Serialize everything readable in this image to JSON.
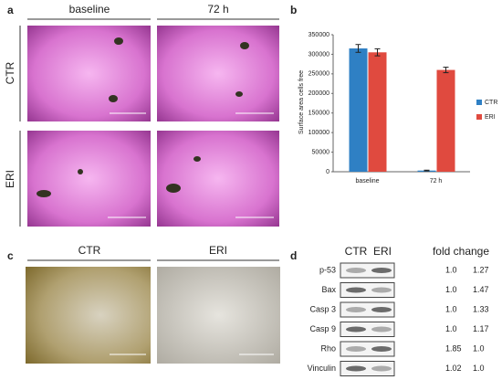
{
  "panel_labels": [
    "a",
    "b",
    "c",
    "d"
  ],
  "panel_a": {
    "columns": [
      "baseline",
      "72 h"
    ],
    "rows": [
      "CTR",
      "ERI"
    ]
  },
  "chart_data": {
    "type": "bar",
    "y_label": "Surface area cells free",
    "categories": [
      "baseline",
      "72 h"
    ],
    "series": [
      {
        "name": "CTR",
        "color": "#2f80c4",
        "values": [
          315000,
          3000
        ],
        "errors": [
          10000,
          1000
        ]
      },
      {
        "name": "ERI",
        "color": "#e04a3f",
        "values": [
          305000,
          260000
        ],
        "errors": [
          9000,
          7000
        ]
      }
    ],
    "ylim": [
      0,
      350000
    ],
    "yticks": [
      0,
      50000,
      100000,
      150000,
      200000,
      250000,
      300000,
      350000
    ],
    "legend": "right"
  },
  "panel_c": {
    "columns": [
      "CTR",
      "ERI"
    ]
  },
  "panel_d": {
    "columns": [
      "CTR",
      "ERI"
    ],
    "fold_change_header": "fold change",
    "rows": [
      {
        "label": "p-53",
        "fold": [
          "1.0",
          "1.27"
        ]
      },
      {
        "label": "Bax",
        "fold": [
          "1.0",
          "1.47"
        ]
      },
      {
        "label": "Casp 3",
        "fold": [
          "1.0",
          "1.33"
        ]
      },
      {
        "label": "Casp 9",
        "fold": [
          "1.0",
          "1.17"
        ]
      },
      {
        "label": "Rho",
        "fold": [
          "1.85",
          "1.0"
        ]
      },
      {
        "label": "Vinculin",
        "fold": [
          "1.02",
          "1.0"
        ]
      }
    ]
  }
}
